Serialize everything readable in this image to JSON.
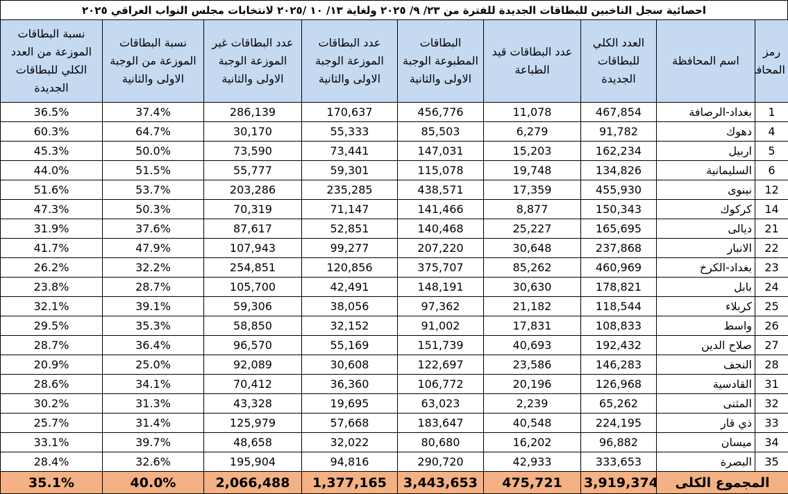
{
  "header": {
    "title": "احصائية سجل الناخبين للبطاقات الجديدة للفترة من  ٢٣/ ٩/ ٢٠٢٥ ولغاية  ١٣/ ١٠ /٢٠٢٥ لانتخابات مجلس النواب العراقي ٢٠٢٥"
  },
  "table": {
    "columns": [
      "رمز المحافظة",
      "اسم المحافظة",
      "العدد الكلي للبطاقات الجديدة",
      "عدد البطاقات قيد الطباعة",
      "البطاقات المطبوعة الوجبة الاولى والثانية",
      "عدد البطاقات الموزعة الوجبة الاولى والثانية",
      "عدد البطاقات غير الموزعة الوجبة الاولى والثانية",
      "نسبة البطاقات الموزعة من الوجبة الاولى والثانية",
      "نسبة البطاقات الموزعة من العدد الكلي للبطاقات الجديدة"
    ],
    "rows": [
      [
        "1",
        "بغداد-الرصافة",
        "467,854",
        "11,078",
        "456,776",
        "170,637",
        "286,139",
        "37.4%",
        "36.5%"
      ],
      [
        "4",
        "دهوك",
        "91,782",
        "6,279",
        "85,503",
        "55,333",
        "30,170",
        "64.7%",
        "60.3%"
      ],
      [
        "5",
        "اربيل",
        "162,234",
        "15,203",
        "147,031",
        "73,441",
        "73,590",
        "50.0%",
        "45.3%"
      ],
      [
        "6",
        "السليمانية",
        "134,826",
        "19,748",
        "115,078",
        "59,301",
        "55,777",
        "51.5%",
        "44.0%"
      ],
      [
        "12",
        "نينوى",
        "455,930",
        "17,359",
        "438,571",
        "235,285",
        "203,286",
        "53.7%",
        "51.6%"
      ],
      [
        "14",
        "كركوك",
        "150,343",
        "8,877",
        "141,466",
        "71,147",
        "70,319",
        "50.3%",
        "47.3%"
      ],
      [
        "21",
        "ديالى",
        "165,695",
        "25,227",
        "140,468",
        "52,851",
        "87,617",
        "37.6%",
        "31.9%"
      ],
      [
        "22",
        "الانبار",
        "237,868",
        "30,648",
        "207,220",
        "99,277",
        "107,943",
        "47.9%",
        "41.7%"
      ],
      [
        "23",
        "بغداد-الكرخ",
        "460,969",
        "85,262",
        "375,707",
        "120,856",
        "254,851",
        "32.2%",
        "26.2%"
      ],
      [
        "24",
        "بابل",
        "178,821",
        "30,630",
        "148,191",
        "42,491",
        "105,700",
        "28.7%",
        "23.8%"
      ],
      [
        "25",
        "كربلاء",
        "118,544",
        "21,182",
        "97,362",
        "38,056",
        "59,306",
        "39.1%",
        "32.1%"
      ],
      [
        "26",
        "واسط",
        "108,833",
        "17,831",
        "91,002",
        "32,152",
        "58,850",
        "35.3%",
        "29.5%"
      ],
      [
        "27",
        "صلاح الدين",
        "192,432",
        "40,693",
        "151,739",
        "55,169",
        "96,570",
        "36.4%",
        "28.7%"
      ],
      [
        "28",
        "النجف",
        "146,283",
        "23,586",
        "122,697",
        "30,608",
        "92,089",
        "25.0%",
        "20.9%"
      ],
      [
        "31",
        "القادسية",
        "126,968",
        "20,196",
        "106,772",
        "36,360",
        "70,412",
        "34.1%",
        "28.6%"
      ],
      [
        "32",
        "المثنى",
        "65,262",
        "2,239",
        "63,023",
        "19,695",
        "43,328",
        "31.3%",
        "30.2%"
      ],
      [
        "33",
        "ذي قار",
        "224,195",
        "40,548",
        "183,647",
        "57,668",
        "125,979",
        "31.4%",
        "25.7%"
      ],
      [
        "34",
        "ميسان",
        "96,882",
        "16,202",
        "80,680",
        "32,022",
        "48,658",
        "39.7%",
        "33.1%"
      ],
      [
        "35",
        "البصرة",
        "333,653",
        "42,933",
        "290,720",
        "94,816",
        "195,904",
        "32.6%",
        "28.4%"
      ]
    ],
    "total": [
      "المجموع الكلى",
      "3,919,374",
      "475,721",
      "3,443,653",
      "1,377,165",
      "2,066,488",
      "40.0%",
      "35.1%"
    ]
  }
}
